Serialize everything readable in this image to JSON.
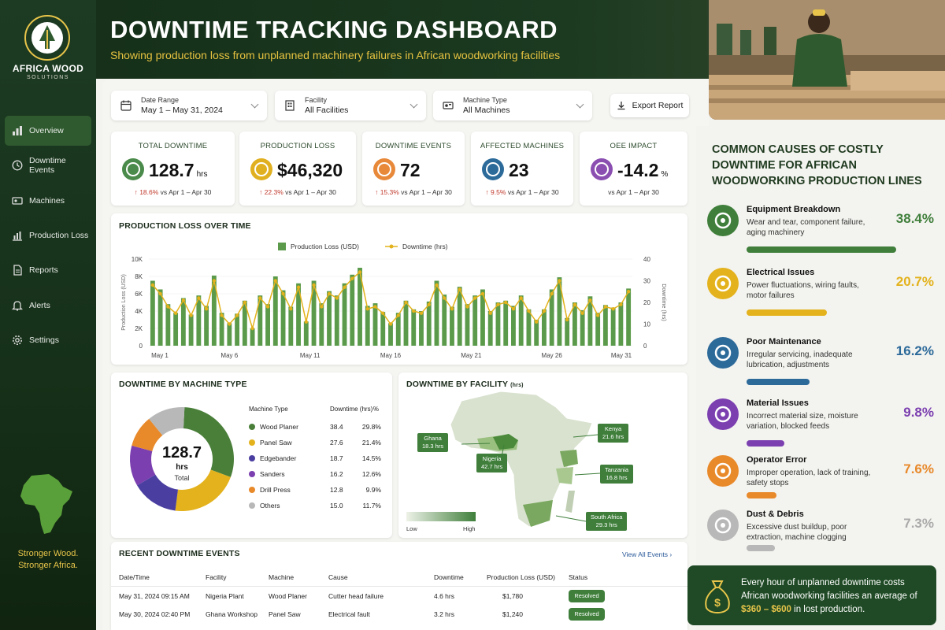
{
  "brand": {
    "name": "AFRICA WOOD",
    "sub": "SOLUTIONS",
    "tagline1": "Stronger Wood.",
    "tagline2": "Stronger Africa."
  },
  "nav": [
    {
      "label": "Overview",
      "icon": "chart-bar-icon",
      "active": true
    },
    {
      "label": "Downtime Events",
      "icon": "clock-icon"
    },
    {
      "label": "Machines",
      "icon": "machine-icon"
    },
    {
      "label": "Production Loss",
      "icon": "bar-chart-icon"
    },
    {
      "label": "Reports",
      "icon": "document-icon"
    },
    {
      "label": "Alerts",
      "icon": "bell-icon"
    },
    {
      "label": "Settings",
      "icon": "gear-icon"
    }
  ],
  "header": {
    "title": "DOWNTIME TRACKING DASHBOARD",
    "subtitle": "Showing production loss from unplanned machinery failures in African woodworking facilities"
  },
  "filters": {
    "date_label": "Date Range",
    "date_value": "May 1 – May 31, 2024",
    "facility_label": "Facility",
    "facility_value": "All Facilities",
    "machine_label": "Machine Type",
    "machine_value": "All Machines",
    "export_label": "Export Report"
  },
  "kpis": [
    {
      "label": "TOTAL DOWNTIME",
      "value": "128.7",
      "unit": "hrs",
      "change": "↑ 18.6%",
      "compare": "vs Apr 1 – Apr 30",
      "color": "#4a8a4a"
    },
    {
      "label": "PRODUCTION LOSS",
      "value": "$46,320",
      "unit": "",
      "change": "↑ 22.3%",
      "compare": "vs Apr 1 – Apr 30",
      "color": "#e0b020"
    },
    {
      "label": "DOWNTIME EVENTS",
      "value": "72",
      "unit": "",
      "change": "↑ 15.3%",
      "compare": "vs Apr 1 – Apr 30",
      "color": "#e8893a"
    },
    {
      "label": "AFFECTED MACHINES",
      "value": "23",
      "unit": "",
      "change": "↑ 9.5%",
      "compare": "vs Apr 1 – Apr 30",
      "color": "#2c6a9a"
    },
    {
      "label": "OEE IMPACT",
      "value": "-14.2",
      "unit": "%",
      "change": "",
      "compare": "vs Apr 1 – Apr 30",
      "color": "#8a4fb0"
    }
  ],
  "chart_data": [
    {
      "type": "bar",
      "title": "PRODUCTION LOSS OVER TIME",
      "legend": [
        "Production Loss (USD)",
        "Downtime (hrs)"
      ],
      "ylabel": "Production Loss (USD)",
      "y2label": "Downtime (hrs)",
      "ylim": [
        0,
        10000
      ],
      "y2lim": [
        0,
        40
      ],
      "yticks": [
        "10K",
        "8K",
        "6K",
        "4K",
        "2K",
        "0"
      ],
      "y2ticks": [
        "40",
        "30",
        "20",
        "10",
        "0"
      ],
      "xticks": [
        "May 1",
        "May 6",
        "May 11",
        "May 16",
        "May 21",
        "May 26",
        "May 31"
      ],
      "values": [
        7500,
        6500,
        4800,
        3800,
        5500,
        3600,
        5800,
        4600,
        8100,
        3800,
        2600,
        3700,
        5200,
        2000,
        5800,
        4800,
        8000,
        6400,
        4500,
        7200,
        2800,
        7500,
        4900,
        6300,
        5800,
        7200,
        8200,
        9000,
        4600,
        4900,
        3900,
        2600,
        3800,
        5200,
        4200,
        4000,
        5100,
        7500,
        5900,
        4500,
        6800,
        4800,
        5800,
        6500,
        4000,
        5000,
        5200,
        4600,
        5800,
        4200,
        3000,
        4200,
        6500,
        7900,
        3200,
        5000,
        4100,
        5700,
        3800,
        4700,
        4400,
        5000,
        6600
      ],
      "downtime": [
        28,
        24,
        18,
        15,
        21,
        14,
        22,
        17,
        30,
        14,
        10,
        14,
        20,
        8,
        22,
        18,
        30,
        24,
        17,
        27,
        11,
        28,
        18,
        24,
        22,
        27,
        31,
        34,
        17,
        18,
        15,
        10,
        14,
        20,
        16,
        15,
        19,
        28,
        22,
        17,
        26,
        18,
        22,
        24,
        15,
        19,
        20,
        17,
        22,
        16,
        11,
        16,
        24,
        30,
        12,
        19,
        15,
        21,
        14,
        18,
        17,
        19,
        25
      ]
    },
    {
      "type": "pie",
      "title": "DOWNTIME BY MACHINE TYPE",
      "center_value": "128.7",
      "center_unit": "hrs",
      "center_label": "Total",
      "columns": [
        "Machine Type",
        "Downtime (hrs)",
        "%"
      ],
      "rows": [
        {
          "name": "Wood Planer",
          "hrs": "38.4",
          "pct": "29.8%",
          "value": 29.8,
          "color": "#4a7f3a"
        },
        {
          "name": "Panel Saw",
          "hrs": "27.6",
          "pct": "21.4%",
          "value": 21.4,
          "color": "#e3b21c"
        },
        {
          "name": "Edgebander",
          "hrs": "18.7",
          "pct": "14.5%",
          "value": 14.5,
          "color": "#4a3fa0"
        },
        {
          "name": "Sanders",
          "hrs": "16.2",
          "pct": "12.6%",
          "value": 12.6,
          "color": "#7b3fb0"
        },
        {
          "name": "Drill Press",
          "hrs": "12.8",
          "pct": "9.9%",
          "value": 9.9,
          "color": "#e8892a"
        },
        {
          "name": "Others",
          "hrs": "15.0",
          "pct": "11.7%",
          "value": 11.7,
          "color": "#b8b8b8"
        }
      ]
    }
  ],
  "facility_map": {
    "title": "DOWNTIME BY FACILITY",
    "title_unit": "(hrs)",
    "legend_low": "Low",
    "legend_high": "High",
    "labels": [
      {
        "name": "Ghana",
        "value": "18.3 hrs"
      },
      {
        "name": "Nigeria",
        "value": "42.7 hrs"
      },
      {
        "name": "Kenya",
        "value": "21.6 hrs"
      },
      {
        "name": "Tanzania",
        "value": "16.8 hrs"
      },
      {
        "name": "South Africa",
        "value": "29.3 hrs"
      }
    ]
  },
  "recent": {
    "title": "RECENT DOWNTIME EVENTS",
    "view_all": "View All Events",
    "columns": [
      "Date/Time",
      "Facility",
      "Machine",
      "Cause",
      "Downtime",
      "Production Loss (USD)",
      "Status"
    ],
    "rows": [
      {
        "date": "May 31, 2024",
        "time": "09:15 AM",
        "facility": "Nigeria Plant",
        "machine": "Wood Planer",
        "cause": "Cutter head failure",
        "downtime": "4.6 hrs",
        "loss": "$1,780",
        "status": "Resolved"
      },
      {
        "date": "May 30, 2024",
        "time": "02:40 PM",
        "facility": "Ghana Workshop",
        "machine": "Panel Saw",
        "cause": "Electrical fault",
        "downtime": "3.2 hrs",
        "loss": "$1,240",
        "status": "Resolved"
      }
    ]
  },
  "causes": {
    "title": "COMMON CAUSES OF COSTLY DOWNTIME FOR AFRICAN WOODWORKING PRODUCTION LINES",
    "items": [
      {
        "name": "Equipment Breakdown",
        "desc": "Wear and tear, component failure, aging machinery",
        "pct": "38.4%",
        "value": 38.4,
        "color": "#3f7f3b"
      },
      {
        "name": "Electrical Issues",
        "desc": "Power fluctuations, wiring faults, motor failures",
        "pct": "20.7%",
        "value": 20.7,
        "color": "#e3b21c"
      },
      {
        "name": "Poor Maintenance",
        "desc": "Irregular servicing, inadequate lubrication, adjustments",
        "pct": "16.2%",
        "value": 16.2,
        "color": "#2c6a9a"
      },
      {
        "name": "Material Issues",
        "desc": "Incorrect material size, moisture variation, blocked feeds",
        "pct": "9.8%",
        "value": 9.8,
        "color": "#7b3fb0"
      },
      {
        "name": "Operator Error",
        "desc": "Improper operation, lack of training, safety stops",
        "pct": "7.6%",
        "value": 7.6,
        "color": "#e8892a"
      },
      {
        "name": "Dust & Debris",
        "desc": "Excessive dust buildup, poor extraction, machine clogging",
        "pct": "7.3%",
        "value": 7.3,
        "color": "#b8b8b8"
      }
    ]
  },
  "banner": {
    "line1": "Every hour of unplanned downtime costs",
    "line2": "African woodworking facilities an average of",
    "highlight": "$360 – $600",
    "line3": "in lost production."
  }
}
